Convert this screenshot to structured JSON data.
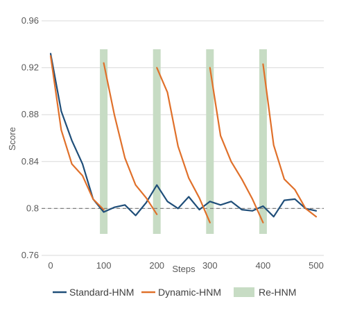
{
  "chart_data": {
    "type": "line",
    "title": "",
    "xlabel": "Steps",
    "ylabel": "Score",
    "xlim": [
      0,
      500
    ],
    "ylim": [
      0.76,
      0.96
    ],
    "x_ticks": [
      0,
      100,
      200,
      300,
      400,
      500
    ],
    "x_tick_labels": [
      "0",
      "100",
      "200",
      "300",
      "400",
      "500"
    ],
    "y_ticks": [
      0.76,
      0.8,
      0.84,
      0.88,
      0.92,
      0.96
    ],
    "y_tick_labels": [
      "0.76",
      "0.8",
      "0.84",
      "0.88",
      "0.92",
      "0.96"
    ],
    "grid": "horizontal",
    "legend_position": "bottom",
    "reference_line": {
      "y": 0.8,
      "style": "dashed",
      "color": "#7f7f7f"
    },
    "shaded_regions": {
      "name": "Re-HNM",
      "color": "#c7dcc4",
      "x_centers": [
        100,
        200,
        300,
        400
      ]
    },
    "series": [
      {
        "name": "Standard-HNM",
        "color": "#1f4e79",
        "x": [
          0,
          20,
          40,
          60,
          80,
          100,
          120,
          140,
          160,
          180,
          200,
          220,
          240,
          260,
          280,
          300,
          320,
          340,
          360,
          380,
          400,
          420,
          440,
          460,
          480,
          500
        ],
        "y": [
          0.932,
          0.883,
          0.858,
          0.838,
          0.808,
          0.797,
          0.801,
          0.803,
          0.794,
          0.805,
          0.82,
          0.806,
          0.8,
          0.81,
          0.799,
          0.806,
          0.803,
          0.806,
          0.799,
          0.798,
          0.802,
          0.793,
          0.807,
          0.808,
          0.8,
          0.798
        ]
      },
      {
        "name": "Dynamic-HNM",
        "color": "#e0702a",
        "x": [
          0,
          20,
          40,
          60,
          80,
          100,
          100,
          120,
          140,
          160,
          180,
          200,
          200,
          220,
          240,
          260,
          280,
          300,
          300,
          320,
          340,
          360,
          380,
          400,
          400,
          420,
          440,
          460,
          480,
          500
        ],
        "y": [
          0.93,
          0.867,
          0.838,
          0.828,
          0.808,
          0.799,
          0.924,
          0.88,
          0.843,
          0.82,
          0.809,
          0.795,
          0.92,
          0.899,
          0.853,
          0.826,
          0.809,
          0.788,
          0.92,
          0.862,
          0.84,
          0.825,
          0.808,
          0.788,
          0.923,
          0.854,
          0.825,
          0.816,
          0.8,
          0.793
        ]
      }
    ],
    "segments": {
      "Dynamic-HNM": [
        [
          0,
          5
        ],
        [
          6,
          11
        ],
        [
          12,
          17
        ],
        [
          18,
          23
        ],
        [
          24,
          29
        ]
      ]
    }
  },
  "legend": {
    "items": [
      {
        "label": "Standard-HNM",
        "kind": "line",
        "color": "#1f4e79"
      },
      {
        "label": "Dynamic-HNM",
        "kind": "line",
        "color": "#e0702a"
      },
      {
        "label": "Re-HNM",
        "kind": "swatch",
        "color": "#c7dcc4"
      }
    ]
  }
}
